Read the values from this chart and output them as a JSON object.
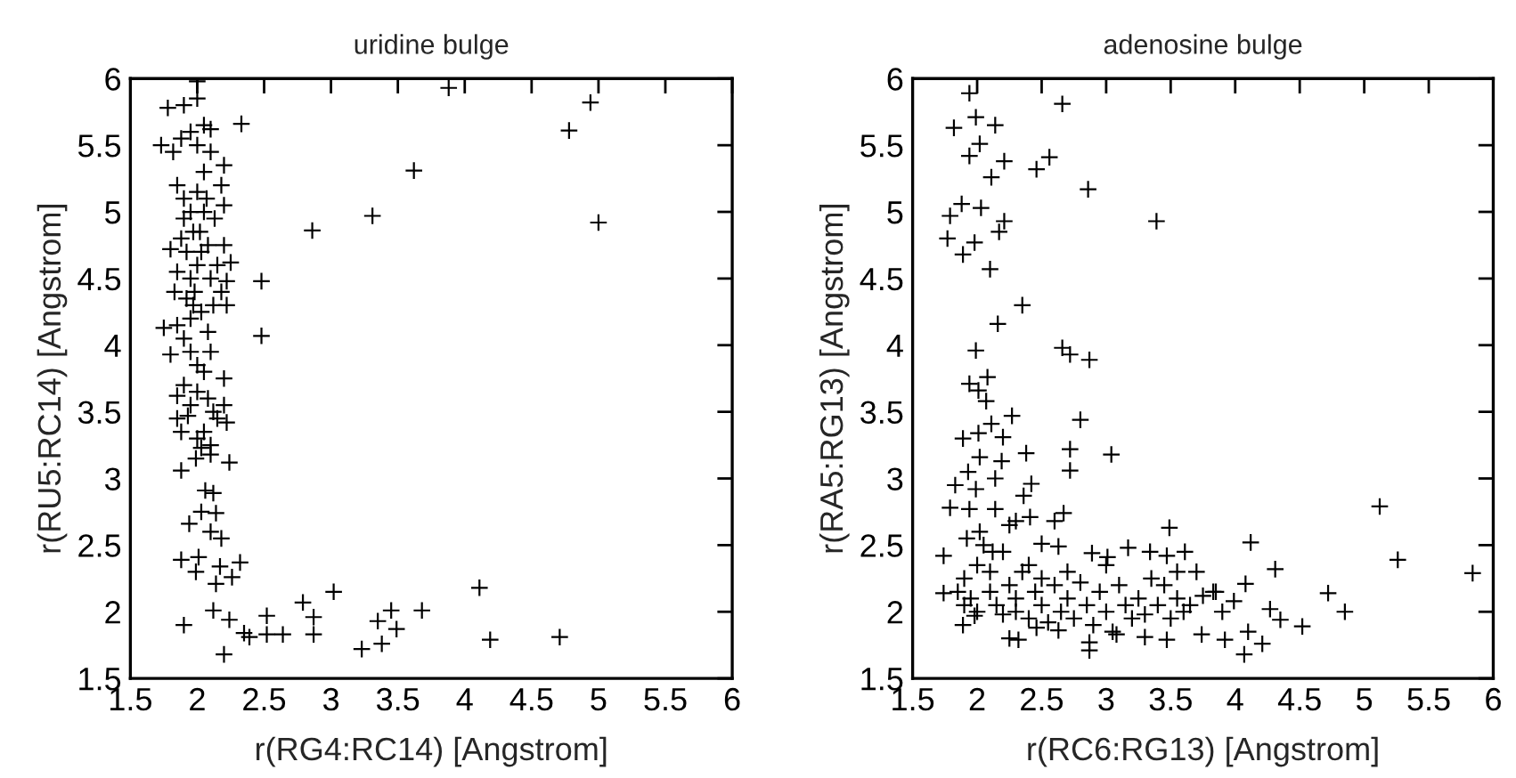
{
  "chart_data": [
    {
      "type": "scatter",
      "title": "uridine bulge",
      "xlabel": "r(RG4:RC14) [Angstrom]",
      "ylabel": "r(RU5:RC14) [Angstrom]",
      "xlim": [
        1.5,
        6
      ],
      "ylim": [
        1.5,
        6
      ],
      "xticks": [
        1.5,
        2,
        2.5,
        3,
        3.5,
        4,
        4.5,
        5,
        5.5,
        6
      ],
      "yticks": [
        1.5,
        2,
        2.5,
        3,
        3.5,
        4,
        4.5,
        5,
        5.5,
        6
      ],
      "grid": false,
      "legend": false,
      "marker": "cross",
      "series": [
        {
          "color": "#000000",
          "x": [
            2.0,
            3.88,
            4.94,
            4.78,
            2.33,
            3.62,
            3.31,
            2.86,
            5.0,
            2.48,
            2.48,
            1.9,
            2.2,
            2.52,
            2.52,
            2.64,
            2.39,
            2.35,
            2.24,
            2.79,
            2.87,
            2.87,
            3.02,
            3.23,
            3.38,
            3.35,
            3.45,
            3.49,
            3.68,
            4.11,
            4.19,
            4.71,
            2.12,
            2.26,
            2.32,
            2.17,
            2.14,
            2.01,
            1.88,
            1.99,
            2.18,
            2.14,
            2.03,
            1.94,
            2.1,
            2.06,
            2.12,
            1.88,
            2.24,
            1.99,
            2.1,
            2.03,
            1.75,
            1.8,
            1.83,
            1.85,
            1.88,
            1.9,
            1.92,
            1.95,
            1.97,
            2.0,
            2.02,
            2.05,
            2.08,
            2.1,
            2.12,
            2.15,
            2.18,
            2.22,
            2.22,
            2.2,
            2.2,
            2.2,
            2.18,
            1.85,
            1.9,
            1.95,
            2.0,
            2.05,
            1.88,
            1.95,
            2.0,
            2.05,
            2.1,
            1.78,
            1.9,
            2.0,
            1.82,
            1.73,
            2.1,
            1.85,
            1.9,
            1.95,
            2.0,
            2.05,
            2.1,
            2.2,
            1.85,
            1.9,
            1.95,
            2.0,
            2.08,
            2.12,
            2.2,
            2.22,
            1.88,
            1.93,
            2.05,
            2.1,
            1.85,
            2.0,
            2.15,
            1.95,
            2.03,
            2.08,
            1.98,
            1.92,
            2.03,
            1.97,
            2.13,
            2.07,
            1.8,
            2.25
          ],
          "values": [
            5.98,
            5.93,
            5.82,
            5.61,
            5.66,
            5.31,
            4.97,
            4.86,
            4.92,
            4.48,
            4.07,
            1.9,
            1.68,
            1.97,
            1.83,
            1.83,
            1.81,
            1.84,
            1.94,
            2.07,
            1.96,
            1.83,
            2.15,
            1.72,
            1.76,
            1.93,
            2.01,
            1.87,
            2.01,
            2.18,
            1.79,
            1.81,
            2.01,
            2.26,
            2.37,
            2.34,
            2.21,
            2.41,
            2.39,
            2.3,
            2.55,
            2.74,
            2.75,
            2.66,
            2.6,
            2.91,
            2.89,
            3.06,
            3.12,
            3.15,
            3.18,
            3.23,
            4.13,
            3.93,
            4.4,
            4.55,
            4.8,
            4.95,
            4.7,
            4.5,
            4.3,
            4.6,
            4.85,
            5.0,
            4.75,
            4.5,
            4.3,
            4.6,
            4.4,
            4.48,
            4.3,
            4.75,
            5.05,
            5.35,
            5.2,
            5.2,
            5.1,
            5.0,
            5.15,
            5.3,
            5.55,
            5.6,
            5.5,
            5.65,
            5.45,
            5.78,
            5.8,
            5.85,
            5.45,
            5.5,
            5.62,
            4.15,
            4.05,
            3.95,
            3.85,
            3.8,
            3.95,
            3.75,
            3.62,
            3.7,
            3.55,
            3.65,
            3.6,
            3.5,
            3.55,
            3.42,
            3.35,
            3.47,
            3.35,
            3.25,
            3.45,
            3.3,
            3.45,
            4.2,
            4.25,
            4.1,
            4.4,
            4.35,
            4.7,
            4.85,
            4.95,
            5.1,
            4.72,
            4.62
          ]
        }
      ]
    },
    {
      "type": "scatter",
      "title": "adenosine bulge",
      "xlabel": "r(RC6:RG13) [Angstrom]",
      "ylabel": "r(RA5:RG13) [Angstrom]",
      "xlim": [
        1.5,
        6
      ],
      "ylim": [
        1.5,
        6
      ],
      "xticks": [
        1.5,
        2,
        2.5,
        3,
        3.5,
        4,
        4.5,
        5,
        5.5,
        6
      ],
      "yticks": [
        1.5,
        2,
        2.5,
        3,
        3.5,
        4,
        4.5,
        5,
        5.5,
        6
      ],
      "grid": false,
      "legend": false,
      "marker": "cross",
      "series": [
        {
          "color": "#000000",
          "x": [
            1.94,
            2.66,
            1.82,
            1.99,
            2.14,
            1.94,
            2.02,
            2.21,
            2.11,
            2.46,
            2.56,
            2.86,
            3.39,
            1.88,
            2.03,
            2.21,
            2.17,
            1.79,
            1.77,
            1.98,
            1.89,
            2.1,
            2.35,
            2.16,
            1.99,
            2.66,
            2.72,
            2.87,
            2.08,
            1.94,
            2.01,
            2.07,
            2.11,
            2.27,
            2.8,
            1.89,
            2.01,
            2.2,
            2.38,
            3.04,
            2.72,
            2.72,
            2.02,
            2.19,
            1.93,
            1.83,
            1.99,
            2.14,
            2.42,
            2.36,
            1.79,
            1.94,
            2.14,
            2.67,
            2.6,
            2.3,
            2.41,
            5.12,
            3.49,
            4.12,
            5.26,
            5.84,
            4.31,
            4.72,
            4.85,
            4.52,
            4.35,
            4.27,
            4.21,
            4.07,
            4.1,
            4.08,
            3.99,
            3.92,
            3.74,
            3.83,
            3.7,
            3.61,
            3.47,
            3.34,
            3.17,
            3.01,
            2.89,
            2.63,
            2.5,
            1.74,
            1.74,
            1.89,
            2.25,
            2.32,
            2.87,
            2.87,
            3.47,
            3.3,
            3.08,
            2.63,
            2.46,
            1.85,
            1.9,
            1.95,
            2.0,
            2.05,
            2.1,
            2.15,
            2.2,
            2.25,
            2.3,
            2.35,
            2.4,
            2.45,
            2.5,
            2.55,
            2.6,
            2.65,
            2.7,
            2.75,
            2.8,
            2.85,
            2.9,
            2.95,
            3.0,
            3.05,
            3.1,
            3.15,
            3.2,
            3.25,
            3.3,
            3.4,
            3.45,
            3.5,
            3.55,
            3.6,
            3.65,
            3.75,
            3.85,
            3.9,
            1.9,
            2.0,
            2.1,
            2.2,
            2.3,
            2.4,
            2.5,
            2.7,
            3.0,
            3.35,
            3.55,
            1.92,
            2.02,
            2.12,
            2.25,
            1.98
          ],
          "values": [
            5.89,
            5.81,
            5.63,
            5.71,
            5.65,
            5.42,
            5.51,
            5.38,
            5.26,
            5.32,
            5.41,
            5.17,
            4.93,
            5.06,
            5.03,
            4.93,
            4.85,
            4.97,
            4.8,
            4.77,
            4.68,
            4.57,
            4.3,
            4.16,
            3.96,
            3.98,
            3.93,
            3.89,
            3.76,
            3.71,
            3.66,
            3.58,
            3.41,
            3.47,
            3.44,
            3.3,
            3.34,
            3.31,
            3.19,
            3.18,
            3.22,
            3.06,
            3.16,
            3.13,
            3.05,
            2.95,
            2.92,
            3.0,
            2.96,
            2.87,
            2.78,
            2.77,
            2.77,
            2.74,
            2.68,
            2.68,
            2.71,
            2.79,
            2.63,
            2.52,
            2.39,
            2.29,
            2.32,
            2.14,
            2.0,
            1.89,
            1.94,
            2.02,
            1.76,
            1.68,
            1.85,
            2.21,
            2.08,
            1.79,
            1.83,
            2.15,
            2.3,
            2.45,
            2.42,
            2.45,
            2.48,
            2.41,
            2.44,
            2.49,
            2.51,
            2.42,
            2.14,
            1.9,
            1.8,
            1.79,
            1.77,
            1.71,
            1.79,
            1.81,
            1.83,
            1.86,
            1.88,
            2.15,
            2.25,
            2.1,
            2.35,
            2.5,
            2.3,
            2.05,
            2.45,
            2.2,
            2.0,
            2.3,
            1.95,
            2.15,
            2.05,
            1.92,
            2.2,
            2.0,
            2.1,
            1.95,
            2.22,
            2.05,
            1.9,
            2.15,
            2.0,
            1.85,
            2.2,
            2.05,
            1.95,
            2.1,
            1.98,
            2.05,
            2.2,
            1.95,
            2.1,
            2.0,
            2.05,
            2.12,
            2.15,
            2.0,
            2.05,
            2.0,
            2.15,
            1.98,
            2.1,
            2.35,
            2.25,
            2.3,
            2.35,
            2.25,
            2.3,
            2.55,
            2.6,
            2.45,
            2.65,
            1.97
          ]
        }
      ]
    }
  ]
}
